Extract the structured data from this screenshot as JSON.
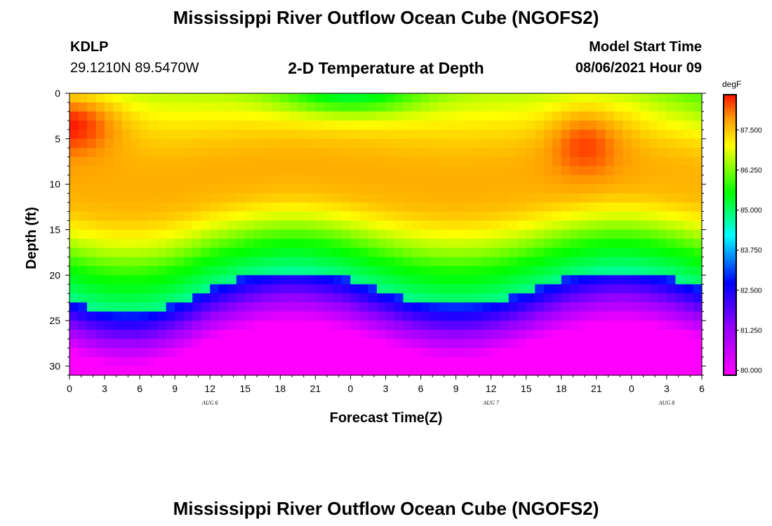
{
  "header": {
    "title": "Mississippi River Outflow Ocean Cube (NGOFS2)",
    "station_id": "KDLP",
    "station_coords": "29.1210N  89.5470W",
    "model_start_label": "Model Start Time",
    "model_start_value": "08/06/2021 Hour 09"
  },
  "footer": {
    "title": "Mississippi River Outflow Ocean Cube (NGOFS2)"
  },
  "chart_data": {
    "type": "heatmap",
    "title": "2-D Temperature at Depth",
    "xlabel": "Forecast Time(Z)",
    "ylabel": "Depth (ft)",
    "x_tick_labels": [
      "0",
      "3",
      "6",
      "9",
      "12",
      "15",
      "18",
      "21",
      "0",
      "3",
      "6",
      "9",
      "12",
      "15",
      "18",
      "21",
      "0",
      "3",
      "6"
    ],
    "x_range_hours": [
      0,
      54
    ],
    "date_labels": [
      {
        "label": "AUG 6",
        "hour": 12
      },
      {
        "label": "AUG 7",
        "hour": 36
      },
      {
        "label": "AUG 8",
        "hour": 51
      }
    ],
    "y_ticks": [
      0,
      5,
      10,
      15,
      20,
      25,
      30
    ],
    "y_range": [
      0,
      31
    ],
    "y_inverted": true,
    "colorbar": {
      "unit": "degF",
      "tick_labels": [
        "87.500",
        "86.250",
        "85.000",
        "83.750",
        "82.500",
        "81.250",
        "80.000"
      ],
      "tick_values": [
        87.5,
        86.25,
        85.0,
        83.75,
        82.5,
        81.25,
        80.0
      ],
      "range": [
        79.85,
        88.6
      ]
    },
    "grid": false
  }
}
